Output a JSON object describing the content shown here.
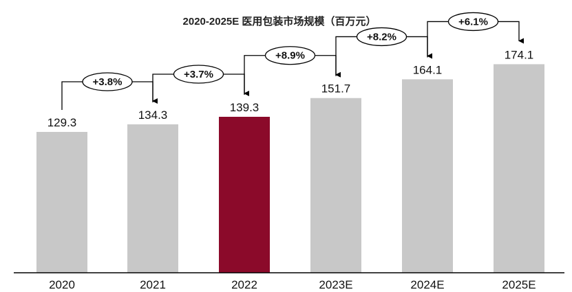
{
  "chart_data": {
    "type": "bar",
    "title": "2020-2025E 医用包装市场规模（百万元）",
    "categories": [
      "2020",
      "2021",
      "2022",
      "2023E",
      "2024E",
      "2025E"
    ],
    "values": [
      129.3,
      134.3,
      139.3,
      151.7,
      164.1,
      174.1
    ],
    "value_labels": [
      "129.3",
      "134.3",
      "139.3",
      "151.7",
      "164.1",
      "174.1"
    ],
    "growth_labels": [
      "+3.8%",
      "+3.7%",
      "+8.9%",
      "+8.2%",
      "+6.1%"
    ],
    "highlight_index": 2,
    "colors": {
      "bar": "#c8c8c8",
      "highlight": "#8b0a2a",
      "baseline": "#000000",
      "arrow": "#000000"
    },
    "xlabel": "",
    "ylabel": "",
    "grid": false,
    "legend": "none"
  }
}
